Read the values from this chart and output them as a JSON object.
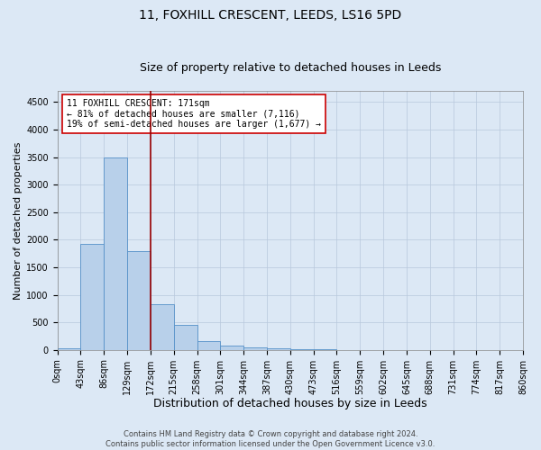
{
  "title": "11, FOXHILL CRESCENT, LEEDS, LS16 5PD",
  "subtitle": "Size of property relative to detached houses in Leeds",
  "xlabel": "Distribution of detached houses by size in Leeds",
  "ylabel": "Number of detached properties",
  "footer_line1": "Contains HM Land Registry data © Crown copyright and database right 2024.",
  "footer_line2": "Contains public sector information licensed under the Open Government Licence v3.0.",
  "bin_labels": [
    "0sqm",
    "43sqm",
    "86sqm",
    "129sqm",
    "172sqm",
    "215sqm",
    "258sqm",
    "301sqm",
    "344sqm",
    "387sqm",
    "430sqm",
    "473sqm",
    "516sqm",
    "559sqm",
    "602sqm",
    "645sqm",
    "688sqm",
    "731sqm",
    "774sqm",
    "817sqm",
    "860sqm"
  ],
  "bar_values": [
    30,
    1920,
    3500,
    1790,
    830,
    455,
    155,
    85,
    45,
    25,
    10,
    5,
    0,
    0,
    0,
    0,
    0,
    0,
    0,
    0
  ],
  "bar_color": "#b8d0ea",
  "bar_edge_color": "#5590c8",
  "vline_color": "#990000",
  "annotation_text": "11 FOXHILL CRESCENT: 171sqm\n← 81% of detached houses are smaller (7,116)\n19% of semi-detached houses are larger (1,677) →",
  "annotation_box_color": "white",
  "annotation_box_edge": "#cc0000",
  "ylim": [
    0,
    4700
  ],
  "yticks": [
    0,
    500,
    1000,
    1500,
    2000,
    2500,
    3000,
    3500,
    4000,
    4500
  ],
  "bg_color": "#dce8f5",
  "plot_bg_color": "#dce8f5",
  "grid_color": "#b8c8dc",
  "title_fontsize": 10,
  "subtitle_fontsize": 9,
  "xlabel_fontsize": 9,
  "ylabel_fontsize": 8,
  "tick_fontsize": 7,
  "annot_fontsize": 7,
  "footer_fontsize": 6
}
